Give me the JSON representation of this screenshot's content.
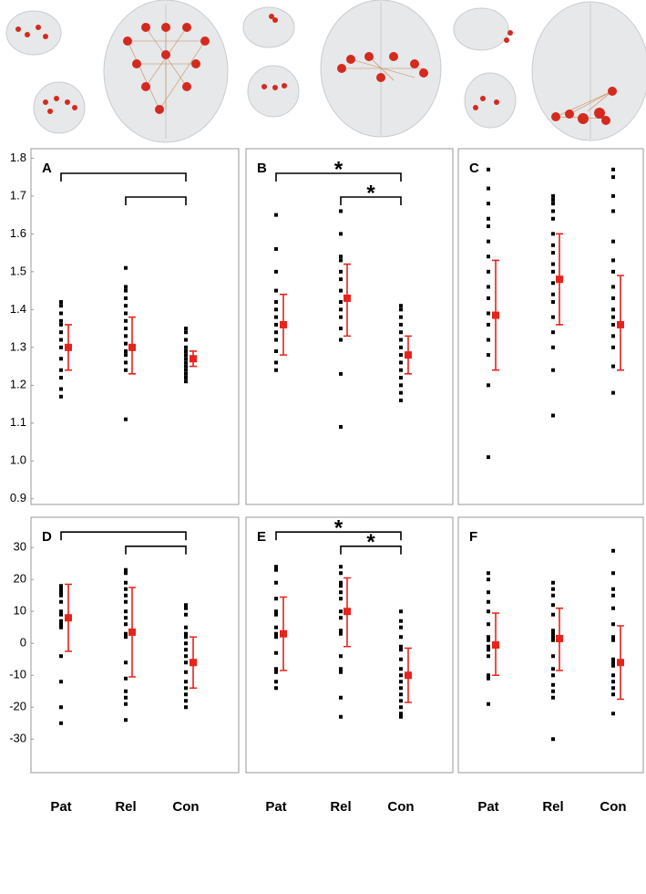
{
  "chart_data": [
    {
      "type": "scatter",
      "panel_label": "A",
      "ylim": [
        0.885,
        1.825
      ],
      "yticks": [
        0.9,
        {
          "value": 1.0,
          "label": "1.0"
        },
        1.1,
        1.2,
        1.3,
        1.4,
        1.5,
        1.6,
        1.7,
        1.8
      ],
      "point_color": "#000000",
      "mean_color": "#e8231b",
      "points": [
        [
          1.42,
          1.41,
          1.39,
          1.37,
          1.36,
          1.34,
          1.32,
          1.3,
          1.27,
          1.24,
          1.22,
          1.19,
          1.17
        ],
        [
          1.51,
          1.46,
          1.45,
          1.43,
          1.41,
          1.39,
          1.37,
          1.35,
          1.33,
          1.31,
          1.29,
          1.28,
          1.26,
          1.24,
          1.11
        ],
        [
          1.35,
          1.34,
          1.32,
          1.3,
          1.29,
          1.28,
          1.27,
          1.26,
          1.25,
          1.24,
          1.23,
          1.22,
          1.21
        ]
      ],
      "means": [
        1.3,
        1.3,
        1.27
      ],
      "error_low": [
        1.24,
        1.23,
        1.25
      ],
      "error_high": [
        1.36,
        1.38,
        1.29
      ],
      "comparisons": [
        {
          "groups": [
            0,
            2
          ]
        },
        {
          "groups": [
            1,
            2
          ]
        }
      ]
    },
    {
      "type": "scatter",
      "panel_label": "B",
      "ylim": [
        0.885,
        1.825
      ],
      "point_color": "#000000",
      "mean_color": "#e8231b",
      "points": [
        [
          1.65,
          1.56,
          1.5,
          1.45,
          1.42,
          1.4,
          1.38,
          1.36,
          1.34,
          1.32,
          1.29,
          1.26,
          1.24
        ],
        [
          1.66,
          1.6,
          1.54,
          1.53,
          1.5,
          1.48,
          1.45,
          1.42,
          1.4,
          1.38,
          1.35,
          1.32,
          1.23,
          1.09
        ],
        [
          1.41,
          1.4,
          1.38,
          1.36,
          1.34,
          1.32,
          1.3,
          1.28,
          1.26,
          1.24,
          1.22,
          1.2,
          1.18,
          1.16
        ]
      ],
      "means": [
        1.36,
        1.43,
        1.28
      ],
      "error_low": [
        1.28,
        1.33,
        1.23
      ],
      "error_high": [
        1.44,
        1.52,
        1.33
      ],
      "comparisons": [
        {
          "groups": [
            0,
            2
          ],
          "label": "*"
        },
        {
          "groups": [
            1,
            2
          ],
          "label": "*"
        }
      ]
    },
    {
      "type": "scatter",
      "panel_label": "C",
      "ylim": [
        0.885,
        1.825
      ],
      "point_color": "#000000",
      "mean_color": "#e8231b",
      "points": [
        [
          1.77,
          1.72,
          1.68,
          1.64,
          1.62,
          1.58,
          1.54,
          1.5,
          1.46,
          1.43,
          1.39,
          1.36,
          1.32,
          1.28,
          1.2,
          1.01
        ],
        [
          1.7,
          1.69,
          1.68,
          1.66,
          1.64,
          1.6,
          1.57,
          1.55,
          1.52,
          1.5,
          1.47,
          1.44,
          1.42,
          1.38,
          1.34,
          1.3,
          1.24,
          1.12
        ],
        [
          1.77,
          1.75,
          1.7,
          1.66,
          1.58,
          1.53,
          1.5,
          1.46,
          1.43,
          1.4,
          1.38,
          1.36,
          1.33,
          1.3,
          1.25,
          1.18
        ]
      ],
      "means": [
        1.385,
        1.48,
        1.36
      ],
      "error_low": [
        1.24,
        1.36,
        1.24
      ],
      "error_high": [
        1.53,
        1.6,
        1.49
      ],
      "comparisons": []
    },
    {
      "type": "scatter",
      "panel_label": "D",
      "categories": [
        "Pat",
        "Rel",
        "Con"
      ],
      "ylim": [
        -40.5,
        39.5
      ],
      "yticks": [
        -30,
        -20,
        -10,
        0,
        10,
        20,
        30
      ],
      "point_color": "#000000",
      "mean_color": "#e8231b",
      "points": [
        [
          18,
          17,
          16,
          15,
          13,
          10,
          9,
          7,
          6,
          5,
          -4,
          -12,
          -20,
          -25
        ],
        [
          23,
          22,
          19,
          17,
          15,
          13,
          10,
          8,
          6,
          3,
          2,
          -6,
          -11,
          -15,
          -17,
          -19,
          -24
        ],
        [
          12,
          11,
          9,
          5,
          3,
          2,
          0,
          -2,
          -4,
          -6,
          -9,
          -12,
          -14,
          -16,
          -18,
          -20
        ]
      ],
      "means": [
        8,
        3.5,
        -6
      ],
      "error_low": [
        -2.5,
        -10.5,
        -14
      ],
      "error_high": [
        18.5,
        17.5,
        2
      ],
      "comparisons": [
        {
          "groups": [
            0,
            2
          ]
        },
        {
          "groups": [
            1,
            2
          ]
        }
      ]
    },
    {
      "type": "scatter",
      "panel_label": "E",
      "categories": [
        "Pat",
        "Rel",
        "Con"
      ],
      "ylim": [
        -40.5,
        39.5
      ],
      "point_color": "#000000",
      "mean_color": "#e8231b",
      "points": [
        [
          24,
          23,
          19,
          14,
          10,
          9,
          5,
          3,
          2,
          -3,
          -8,
          -9,
          -12,
          -14
        ],
        [
          24,
          22,
          19,
          18,
          16,
          14,
          10,
          8,
          4,
          3,
          -4,
          -8,
          -9,
          -17,
          -23
        ],
        [
          10,
          7,
          5,
          2,
          -1,
          -2,
          -5,
          -8,
          -10,
          -12,
          -14,
          -16,
          -18,
          -20,
          -22,
          -23
        ]
      ],
      "means": [
        3,
        10,
        -10
      ],
      "error_low": [
        -8.5,
        -1,
        -18.5
      ],
      "error_high": [
        14.5,
        20.5,
        -1.5
      ],
      "comparisons": [
        {
          "groups": [
            0,
            2
          ],
          "label": "*"
        },
        {
          "groups": [
            1,
            2
          ],
          "label": "*"
        }
      ]
    },
    {
      "type": "scatter",
      "panel_label": "F",
      "categories": [
        "Pat",
        "Rel",
        "Con"
      ],
      "ylim": [
        -40.5,
        39.5
      ],
      "point_color": "#000000",
      "mean_color": "#e8231b",
      "points": [
        [
          22,
          20,
          16,
          13,
          10,
          6,
          2,
          1,
          -1,
          -2,
          -4,
          -10,
          -11,
          -19
        ],
        [
          19,
          17,
          15,
          12,
          9,
          4,
          3,
          2,
          1,
          -4,
          -8,
          -10,
          -13,
          -15,
          -17,
          -30
        ],
        [
          29,
          22,
          17,
          15,
          11,
          6,
          2,
          1,
          -5,
          -6,
          -7,
          -10,
          -12,
          -14,
          -16,
          -22
        ]
      ],
      "means": [
        -0.5,
        1.5,
        -6
      ],
      "error_low": [
        -10,
        -8.5,
        -17.5
      ],
      "error_high": [
        9.5,
        11,
        5.5
      ],
      "comparisons": []
    }
  ]
}
